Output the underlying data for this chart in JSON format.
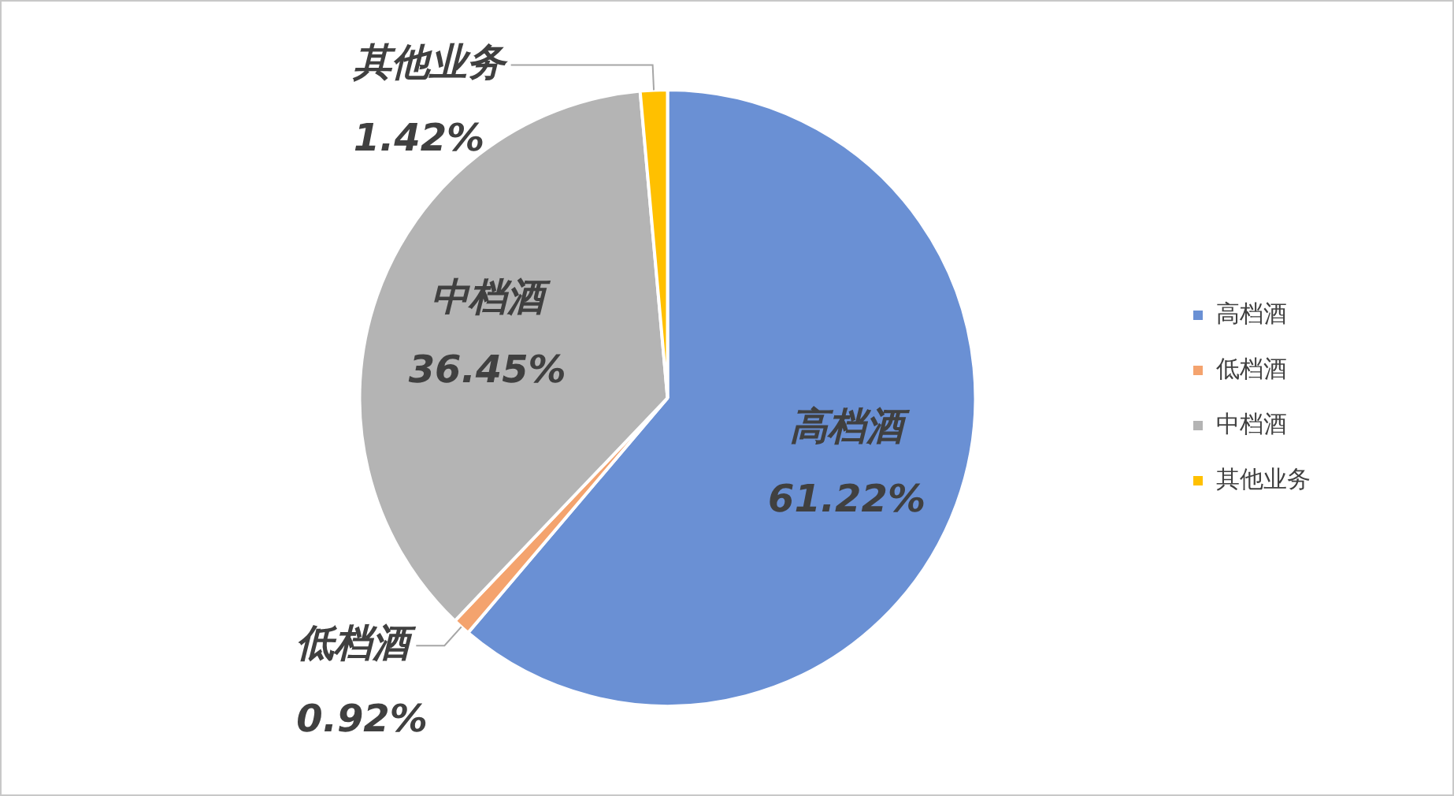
{
  "chart_data": {
    "type": "pie",
    "categories": [
      "高档酒",
      "低档酒",
      "中档酒",
      "其他业务"
    ],
    "values": [
      61.22,
      0.92,
      36.45,
      1.42
    ],
    "colors": [
      "#6a90d4",
      "#f4a36e",
      "#b4b4b4",
      "#ffc000"
    ],
    "value_labels": [
      "61.22%",
      "0.92%",
      "36.45%",
      "1.42%"
    ],
    "legend": "right"
  }
}
